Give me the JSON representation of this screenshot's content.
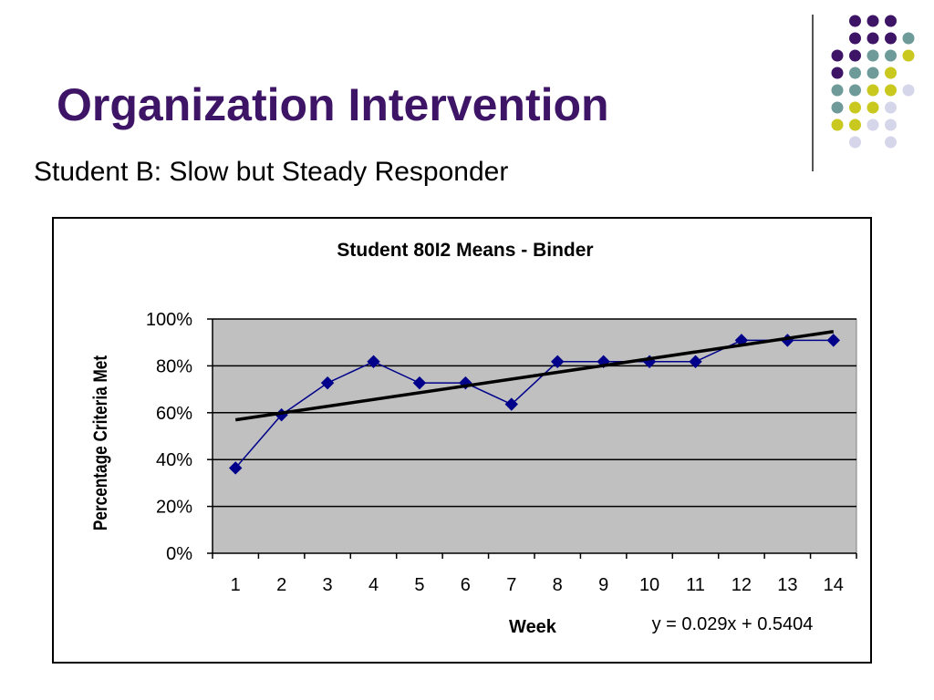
{
  "slide": {
    "title": "Organization Intervention",
    "subtitle": "Student B: Slow but Steady Responder"
  },
  "colors": {
    "title": "#3d1466",
    "dot_purple": "#3d1466",
    "dot_teal": "#6f9a9a",
    "dot_yellow": "#c8c81e",
    "dot_lavender": "#d6d6ea",
    "plot_bg": "#c0c0c0",
    "series": "#00008b",
    "trend": "#000000"
  },
  "chart_data": {
    "type": "line",
    "title": "Student 80I2 Means - Binder",
    "xlabel": "Week",
    "ylabel": "Percentage Criteria Met",
    "categories": [
      "1",
      "2",
      "3",
      "4",
      "5",
      "6",
      "7",
      "8",
      "9",
      "10",
      "11",
      "12",
      "13",
      "14"
    ],
    "series": [
      {
        "values": [
          0.364,
          0.591,
          0.727,
          0.818,
          0.727,
          0.727,
          0.636,
          0.818,
          0.818,
          0.818,
          0.818,
          0.909,
          0.909,
          0.909
        ]
      }
    ],
    "trendline": {
      "equation": "y = 0.029x + 0.5404",
      "slope": 0.029,
      "intercept": 0.5404
    },
    "y_ticks": [
      "0%",
      "20%",
      "40%",
      "60%",
      "80%",
      "100%"
    ],
    "ylim": [
      0,
      1
    ],
    "grid": true,
    "legend": "none"
  }
}
